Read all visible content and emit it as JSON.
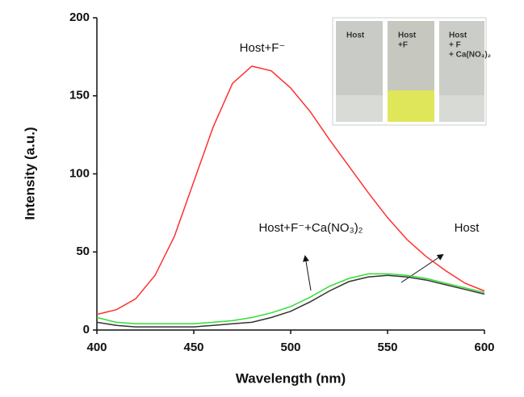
{
  "chart_data": {
    "type": "line",
    "x": [
      400,
      410,
      420,
      430,
      440,
      450,
      460,
      470,
      480,
      490,
      500,
      510,
      520,
      530,
      540,
      550,
      560,
      570,
      580,
      590,
      600
    ],
    "series": [
      {
        "name": "Host+F⁻",
        "color": "#ff3030",
        "values": [
          10,
          13,
          20,
          35,
          60,
          95,
          130,
          158,
          169,
          166,
          155,
          140,
          122,
          105,
          88,
          72,
          58,
          47,
          38,
          30,
          25
        ]
      },
      {
        "name": "Host",
        "color": "#333333",
        "values": [
          5,
          3,
          2,
          2,
          2,
          2,
          3,
          4,
          5,
          8,
          12,
          18,
          25,
          31,
          34,
          35,
          34,
          32,
          29,
          26,
          23
        ]
      },
      {
        "name": "Host+F⁻+Ca(NO₃)₂",
        "color": "#33dd33",
        "values": [
          8,
          5,
          4,
          4,
          4,
          4,
          5,
          6,
          8,
          11,
          15,
          21,
          28,
          33,
          36,
          36,
          35,
          33,
          30,
          27,
          24
        ]
      }
    ],
    "xlim": [
      400,
      600
    ],
    "xticks": [
      400,
      450,
      500,
      550,
      600
    ],
    "ylim": [
      0,
      200
    ],
    "yticks": [
      0,
      50,
      100,
      150,
      200
    ],
    "x_label": "Wavelength (nm)",
    "y_label": "Intensity (a.u.)",
    "inset_labels": [
      [
        "Host"
      ],
      [
        "Host",
        "+F"
      ],
      [
        "Host",
        "+ F",
        "+ Ca(NO₃)₂"
      ]
    ]
  }
}
